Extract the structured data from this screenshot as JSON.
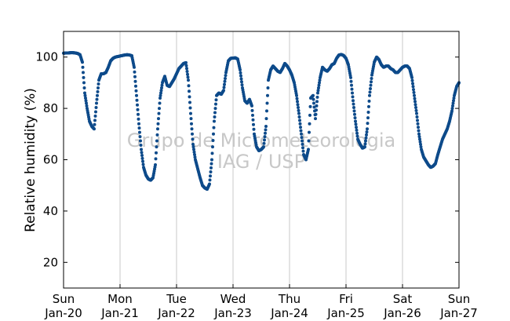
{
  "chart_data": {
    "type": "scatter",
    "ylabel": "Relative humidity (%)",
    "xlabel": "",
    "ylim": [
      10,
      110
    ],
    "yticks": [
      20,
      40,
      60,
      80,
      100
    ],
    "xlim": [
      "2013-01-20",
      "2013-01-27"
    ],
    "xticks": [
      {
        "date": "2013-01-20",
        "day": "Sun",
        "date_label": "Jan-20"
      },
      {
        "date": "2013-01-21",
        "day": "Mon",
        "date_label": "Jan-21"
      },
      {
        "date": "2013-01-22",
        "day": "Tue",
        "date_label": "Jan-22"
      },
      {
        "date": "2013-01-23",
        "day": "Wed",
        "date_label": "Jan-23"
      },
      {
        "date": "2013-01-24",
        "day": "Thu",
        "date_label": "Jan-24"
      },
      {
        "date": "2013-01-25",
        "day": "Fri",
        "date_label": "Jan-25"
      },
      {
        "date": "2013-01-26",
        "day": "Sat",
        "date_label": "Jan-26"
      },
      {
        "date": "2013-01-27",
        "day": "Sun",
        "date_label": "Jan-27"
      }
    ],
    "grid": "vertical",
    "color": "#0d4a8a",
    "watermark": [
      "Grupo de Micrometeorologia",
      "IAG / USP"
    ],
    "series": [
      {
        "x": [
          "2013-01-20 00:00",
          "2013-01-20 01:00",
          "2013-01-20 02:00",
          "2013-01-20 03:00",
          "2013-01-20 04:00",
          "2013-01-20 05:00",
          "2013-01-20 06:00",
          "2013-01-20 07:00",
          "2013-01-20 08:00",
          "2013-01-20 09:00",
          "2013-01-20 10:00",
          "2013-01-20 11:00",
          "2013-01-20 12:00",
          "2013-01-20 13:00",
          "2013-01-20 14:00",
          "2013-01-20 15:00",
          "2013-01-20 16:00",
          "2013-01-20 17:00",
          "2013-01-20 18:00",
          "2013-01-20 19:00",
          "2013-01-20 20:00",
          "2013-01-20 21:00",
          "2013-01-20 22:00",
          "2013-01-20 23:00",
          "2013-01-21 00:00",
          "2013-01-21 01:00",
          "2013-01-21 02:00",
          "2013-01-21 03:00",
          "2013-01-21 04:00",
          "2013-01-21 05:00",
          "2013-01-21 06:00",
          "2013-01-21 07:00",
          "2013-01-21 08:00",
          "2013-01-21 09:00",
          "2013-01-21 10:00",
          "2013-01-21 11:00",
          "2013-01-21 12:00",
          "2013-01-21 13:00",
          "2013-01-21 14:00",
          "2013-01-21 15:00",
          "2013-01-21 16:00",
          "2013-01-21 17:00",
          "2013-01-21 18:00",
          "2013-01-21 19:00",
          "2013-01-21 20:00",
          "2013-01-21 21:00",
          "2013-01-21 22:00",
          "2013-01-21 23:00",
          "2013-01-22 00:00",
          "2013-01-22 01:00",
          "2013-01-22 02:00",
          "2013-01-22 03:00",
          "2013-01-22 04:00",
          "2013-01-22 05:00",
          "2013-01-22 06:00",
          "2013-01-22 07:00",
          "2013-01-22 08:00",
          "2013-01-22 09:00",
          "2013-01-22 10:00",
          "2013-01-22 11:00",
          "2013-01-22 12:00",
          "2013-01-22 13:00",
          "2013-01-22 14:00",
          "2013-01-22 15:00",
          "2013-01-22 16:00",
          "2013-01-22 17:00",
          "2013-01-22 18:00",
          "2013-01-22 19:00",
          "2013-01-22 20:00",
          "2013-01-22 21:00",
          "2013-01-22 22:00",
          "2013-01-22 23:00",
          "2013-01-23 00:00",
          "2013-01-23 01:00",
          "2013-01-23 02:00",
          "2013-01-23 03:00",
          "2013-01-23 04:00",
          "2013-01-23 05:00",
          "2013-01-23 06:00",
          "2013-01-23 07:00",
          "2013-01-23 08:00",
          "2013-01-23 09:00",
          "2013-01-23 10:00",
          "2013-01-23 11:00",
          "2013-01-23 12:00",
          "2013-01-23 13:00",
          "2013-01-23 14:00",
          "2013-01-23 15:00",
          "2013-01-23 16:00",
          "2013-01-23 17:00",
          "2013-01-23 18:00",
          "2013-01-23 19:00",
          "2013-01-23 20:00",
          "2013-01-23 21:00",
          "2013-01-23 22:00",
          "2013-01-23 23:00",
          "2013-01-24 00:00",
          "2013-01-24 01:00",
          "2013-01-24 02:00",
          "2013-01-24 03:00",
          "2013-01-24 04:00",
          "2013-01-24 05:00",
          "2013-01-24 06:00",
          "2013-01-24 07:00",
          "2013-01-24 08:00",
          "2013-01-24 09:00",
          "2013-01-24 10:00",
          "2013-01-24 11:00",
          "2013-01-24 12:00",
          "2013-01-24 13:00",
          "2013-01-24 14:00",
          "2013-01-24 15:00",
          "2013-01-24 16:00",
          "2013-01-24 17:00",
          "2013-01-24 18:00",
          "2013-01-24 19:00",
          "2013-01-24 20:00",
          "2013-01-24 21:00",
          "2013-01-24 22:00",
          "2013-01-24 23:00",
          "2013-01-25 00:00",
          "2013-01-25 01:00",
          "2013-01-25 02:00",
          "2013-01-25 03:00",
          "2013-01-25 04:00",
          "2013-01-25 05:00",
          "2013-01-25 06:00",
          "2013-01-25 07:00",
          "2013-01-25 08:00",
          "2013-01-25 09:00",
          "2013-01-25 10:00",
          "2013-01-25 11:00",
          "2013-01-25 12:00",
          "2013-01-25 13:00",
          "2013-01-25 14:00",
          "2013-01-25 15:00",
          "2013-01-25 16:00",
          "2013-01-25 17:00",
          "2013-01-25 18:00",
          "2013-01-25 19:00",
          "2013-01-25 20:00",
          "2013-01-25 21:00",
          "2013-01-25 22:00",
          "2013-01-25 23:00",
          "2013-01-26 00:00",
          "2013-01-26 01:00",
          "2013-01-26 02:00",
          "2013-01-26 03:00",
          "2013-01-26 04:00",
          "2013-01-26 05:00",
          "2013-01-26 06:00",
          "2013-01-26 07:00",
          "2013-01-26 08:00",
          "2013-01-26 09:00",
          "2013-01-26 10:00",
          "2013-01-26 11:00",
          "2013-01-26 12:00",
          "2013-01-26 13:00",
          "2013-01-26 14:00",
          "2013-01-26 15:00",
          "2013-01-26 16:00",
          "2013-01-26 17:00",
          "2013-01-26 18:00",
          "2013-01-26 19:00",
          "2013-01-26 20:00",
          "2013-01-26 21:00",
          "2013-01-26 22:00",
          "2013-01-26 23:00",
          "2013-01-27 00:00"
        ],
        "values": [
          101.5,
          101.6,
          101.6,
          101.7,
          101.7,
          101.6,
          101.4,
          100.9,
          98.0,
          86.0,
          80.0,
          75.0,
          73.0,
          72.0,
          82.0,
          91.0,
          93.5,
          93.5,
          94.0,
          96.0,
          98.5,
          99.5,
          100.0,
          100.2,
          100.4,
          100.6,
          100.8,
          100.9,
          100.8,
          100.5,
          96.0,
          85.0,
          74.0,
          64.0,
          57.0,
          54.0,
          52.5,
          52.0,
          53.0,
          58.0,
          72.0,
          84.0,
          90.0,
          92.5,
          89.0,
          88.5,
          90.0,
          91.5,
          93.5,
          95.5,
          96.5,
          97.5,
          97.8,
          91.0,
          78.0,
          66.0,
          60.0,
          56.5,
          53.0,
          50.0,
          49.0,
          48.5,
          50.5,
          60.0,
          75.0,
          85.0,
          86.0,
          85.5,
          87.0,
          94.0,
          98.5,
          99.5,
          99.6,
          99.7,
          99.2,
          95.0,
          88.0,
          83.0,
          82.0,
          83.5,
          81.0,
          70.0,
          65.0,
          63.5,
          64.0,
          65.0,
          73.0,
          91.0,
          95.0,
          96.5,
          95.5,
          94.5,
          94.0,
          95.5,
          97.5,
          96.5,
          95.0,
          93.0,
          90.0,
          85.0,
          78.0,
          70.0,
          62.0,
          60.0,
          64.0,
          84.0,
          85.0,
          76.0,
          86.0,
          92.0,
          96.0,
          95.0,
          94.5,
          95.5,
          97.0,
          97.5,
          99.5,
          100.8,
          101.0,
          100.6,
          99.5,
          97.0,
          92.0,
          83.0,
          75.0,
          68.0,
          66.0,
          64.5,
          65.0,
          72.0,
          85.0,
          93.0,
          98.0,
          100.0,
          99.0,
          97.0,
          96.0,
          96.5,
          96.5,
          95.5,
          95.0,
          94.0,
          94.0,
          95.0,
          96.0,
          96.5,
          96.5,
          95.5,
          92.0,
          85.0,
          78.0,
          70.0,
          64.0,
          61.0,
          59.5,
          58.0,
          57.0,
          57.5,
          58.5,
          62.0,
          65.0,
          68.0,
          70.0,
          72.0,
          75.0,
          79.0,
          85.0,
          88.5,
          90.0
        ]
      }
    ]
  }
}
